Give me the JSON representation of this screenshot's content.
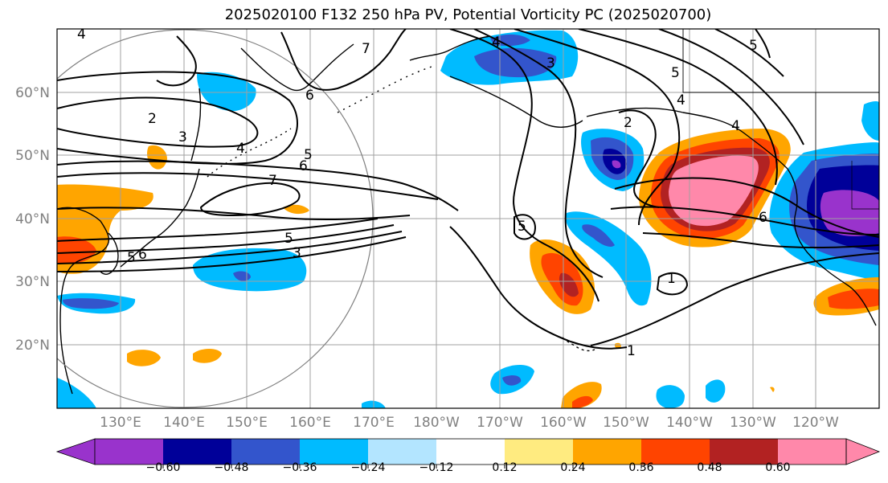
{
  "title": "2025020100 F132 250 hPa PV, Potential Vorticity PC (2025020700)",
  "map": {
    "lat_labels": [
      "60°N",
      "50°N",
      "40°N",
      "30°N",
      "20°N"
    ],
    "lon_labels": [
      "130°E",
      "140°E",
      "150°E",
      "160°E",
      "170°E",
      "180°W",
      "170°W",
      "160°W",
      "150°W",
      "140°W",
      "130°W",
      "120°W"
    ],
    "gridline_color": "#a0a0a0",
    "label_color": "#808080"
  },
  "contour_labels": [
    "4",
    "7",
    "3",
    "4",
    "5",
    "6",
    "2",
    "3",
    "4",
    "5",
    "6",
    "7",
    "5",
    "3",
    "6",
    "2",
    "5",
    "4",
    "5",
    "1",
    "1",
    "5",
    "6",
    "4"
  ],
  "colorbar": {
    "colors": [
      "#9933cc",
      "#000099",
      "#3355cc",
      "#00bbff",
      "#b3e5ff",
      "#ffffff",
      "#ffeb80",
      "#ffa500",
      "#ff4400",
      "#b22222",
      "#ff88aa"
    ],
    "tick_labels": [
      "−0.60",
      "−0.48",
      "−0.36",
      "−0.24",
      "−0.12",
      "0.12",
      "0.24",
      "0.36",
      "0.48",
      "0.60"
    ]
  }
}
